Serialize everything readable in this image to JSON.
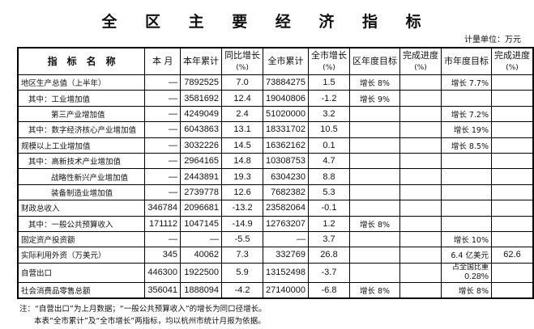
{
  "title": "全 区 主 要 经 济 指 标",
  "unit": "计量单位：万元",
  "headers": {
    "name": "指　标　名　称",
    "month": "本 月",
    "ytd": "本年累计",
    "yoy": "同比增长",
    "yoy_unit": "(%)",
    "city_ytd": "全市累计",
    "city_growth": "全市增长",
    "city_growth_unit": "(%)",
    "district_target": "区年度目标",
    "district_progress": "完成进度",
    "district_progress_unit": "(%)",
    "city_target": "市年度目标",
    "city_progress": "完成进度",
    "city_progress_unit": "(%)"
  },
  "rows": [
    {
      "name": "地区生产总值（上半年）",
      "month": "—",
      "ytd": "7892525",
      "yoy": "7.0",
      "city_ytd": "73884275",
      "city_growth": "1.5",
      "district_target": "增长 8%",
      "district_progress": "",
      "city_target": "增长 7.7%",
      "city_progress": ""
    },
    {
      "name": "其中：工业增加值",
      "month": "—",
      "ytd": "3581692",
      "yoy": "12.4",
      "city_ytd": "19040806",
      "city_growth": "-1.2",
      "district_target": "增长 9%",
      "district_progress": "",
      "city_target": "",
      "city_progress": ""
    },
    {
      "name": "第三产业增加值",
      "month": "—",
      "ytd": "4249049",
      "yoy": "2.4",
      "city_ytd": "51020000",
      "city_growth": "3.2",
      "district_target": "",
      "district_progress": "",
      "city_target": "增长 7.2%",
      "city_progress": ""
    },
    {
      "name": "其中：数字经济核心产业增加值",
      "month": "—",
      "ytd": "6043863",
      "yoy": "13.1",
      "city_ytd": "18331702",
      "city_growth": "10.5",
      "district_target": "",
      "district_progress": "",
      "city_target": "增长 19%",
      "city_progress": ""
    },
    {
      "name": "规模以上工业增加值",
      "month": "—",
      "ytd": "3032226",
      "yoy": "14.5",
      "city_ytd": "16362162",
      "city_growth": "0.1",
      "district_target": "",
      "district_progress": "",
      "city_target": "增长 8.5%",
      "city_progress": ""
    },
    {
      "name": "其中：高新技术产业增加值",
      "month": "—",
      "ytd": "2964165",
      "yoy": "14.8",
      "city_ytd": "10308753",
      "city_growth": "4.7",
      "district_target": "",
      "district_progress": "",
      "city_target": "",
      "city_progress": ""
    },
    {
      "name": "战略性新兴产业增加值",
      "month": "—",
      "ytd": "2443891",
      "yoy": "19.3",
      "city_ytd": "6304230",
      "city_growth": "8.8",
      "district_target": "",
      "district_progress": "",
      "city_target": "",
      "city_progress": ""
    },
    {
      "name": "装备制造业增加值",
      "month": "—",
      "ytd": "2739778",
      "yoy": "12.6",
      "city_ytd": "7682382",
      "city_growth": "5.3",
      "district_target": "",
      "district_progress": "",
      "city_target": "",
      "city_progress": ""
    },
    {
      "name": "财政总收入",
      "month": "346784",
      "ytd": "2096681",
      "yoy": "-13.2",
      "city_ytd": "23582064",
      "city_growth": "-0.1",
      "district_target": "",
      "district_progress": "",
      "city_target": "",
      "city_progress": ""
    },
    {
      "name": "其中：一般公共预算收入",
      "month": "171112",
      "ytd": "1047145",
      "yoy": "-14.9",
      "city_ytd": "12763207",
      "city_growth": "1.2",
      "district_target": "增长 8%",
      "district_progress": "",
      "city_target": "",
      "city_progress": ""
    },
    {
      "name": "固定资产投资额",
      "month": "—",
      "ytd": "—",
      "yoy": "-5.5",
      "city_ytd": "—",
      "city_growth": "3.7",
      "district_target": "",
      "district_progress": "",
      "city_target": "增长 10%",
      "city_progress": ""
    },
    {
      "name": "实际利用外资（万美元）",
      "month": "345",
      "ytd": "40062",
      "yoy": "7.3",
      "city_ytd": "332769",
      "city_growth": "26.8",
      "district_target": "",
      "district_progress": "",
      "city_target": "6.4 亿美元",
      "city_progress": "62.6"
    },
    {
      "name": "自营出口",
      "month": "446300",
      "ytd": "1922500",
      "yoy": "5.9",
      "city_ytd": "13152498",
      "city_growth": "-3.7",
      "district_target": "",
      "district_progress": "",
      "city_target": "占全国比重",
      "city_target_2": "0.28%",
      "city_progress": ""
    },
    {
      "name": "社会消费品零售总额",
      "month": "356041",
      "ytd": "1888094",
      "yoy": "-4.2",
      "city_ytd": "27140000",
      "city_growth": "-6.8",
      "district_target": "增长 8%",
      "district_progress": "",
      "city_target": "增长 8%",
      "city_progress": ""
    }
  ],
  "notes": [
    "注：“自营出口”为上月数据；“一般公共预算收入”的增长为同口径增长。",
    "本表“全市累计”及“全市增长”两指标，均以杭州市统计月报为依据。"
  ]
}
